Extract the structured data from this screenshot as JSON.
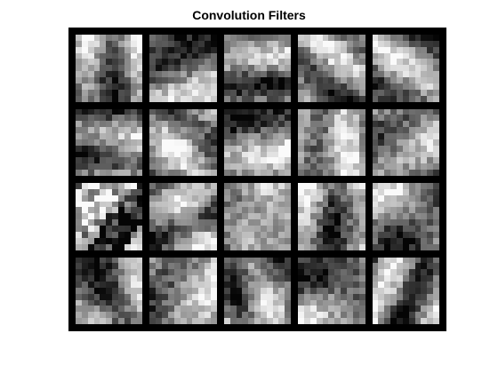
{
  "figure": {
    "title": "Convolution Filters"
  },
  "montage": {
    "rows": 4,
    "cols": 5,
    "filter_size": 11,
    "colormap": "gray",
    "border_color": "#000000"
  }
}
